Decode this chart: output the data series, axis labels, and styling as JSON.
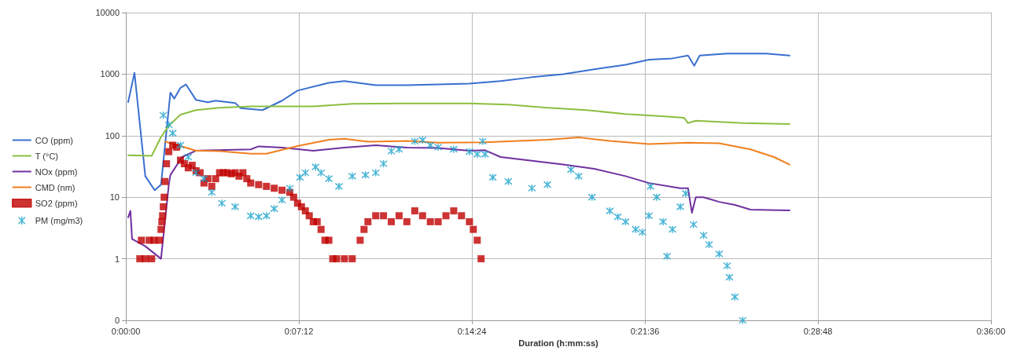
{
  "chart_data": {
    "type": "line",
    "xlabel": "Duration (h:mm:ss)",
    "xlim": [
      0,
      0.6
    ],
    "xticks": [
      {
        "value": 0,
        "label": "0:00:00"
      },
      {
        "value": 0.12,
        "label": "0:07:12"
      },
      {
        "value": 0.24,
        "label": "0:14:24"
      },
      {
        "value": 0.36,
        "label": "0:21:36"
      },
      {
        "value": 0.48,
        "label": "0:28:48"
      },
      {
        "value": 0.6,
        "label": "0:36:00"
      }
    ],
    "ylim": [
      0.1,
      10000
    ],
    "yticks": [
      {
        "value": 0.1,
        "label": "0"
      },
      1,
      10,
      100,
      1000,
      10000
    ],
    "log": "y",
    "grid": true,
    "legend": "left",
    "line_style": "solid",
    "series": [
      {
        "name": "CO (ppm)",
        "marker": "none",
        "color": "#3a6fcf",
        "x": [
          0.0016,
          0.006,
          0.0135,
          0.02,
          0.0244,
          0.0309,
          0.0336,
          0.0379,
          0.0417,
          0.0487,
          0.0569,
          0.0623,
          0.0758,
          0.0796,
          0.0948,
          0.1083,
          0.1191,
          0.1408,
          0.1516,
          0.1733,
          0.1949,
          0.2166,
          0.2383,
          0.2599,
          0.2816,
          0.3032,
          0.3249,
          0.3466,
          0.3628,
          0.3791,
          0.3899,
          0.3942,
          0.398,
          0.417,
          0.444,
          0.4603
        ],
        "values": [
          350,
          1050,
          22,
          13,
          16,
          500,
          400,
          600,
          680,
          380,
          350,
          370,
          340,
          280,
          260,
          370,
          540,
          720,
          770,
          660,
          660,
          680,
          700,
          770,
          890,
          1000,
          1200,
          1420,
          1720,
          1800,
          2000,
          1370,
          2000,
          2150,
          2150,
          2000
        ]
      },
      {
        "name": "T (°C)",
        "marker": "none",
        "color": "#8cbf3f",
        "x": [
          0.0016,
          0.0179,
          0.0244,
          0.0298,
          0.0379,
          0.0487,
          0.065,
          0.0866,
          0.13,
          0.157,
          0.2112,
          0.2383,
          0.2653,
          0.2924,
          0.3195,
          0.3466,
          0.3737,
          0.3872,
          0.3899,
          0.3953,
          0.4278,
          0.4603
        ],
        "values": [
          48,
          47,
          95,
          145,
          220,
          260,
          285,
          300,
          300,
          330,
          335,
          335,
          320,
          285,
          260,
          225,
          205,
          195,
          160,
          175,
          160,
          155
        ]
      },
      {
        "name": "NOx (ppm)",
        "marker": "none",
        "color": "#7030a0",
        "x": [
          0.0016,
          0.0032,
          0.0043,
          0.0135,
          0.0244,
          0.0298,
          0.0309,
          0.039,
          0.0487,
          0.0866,
          0.0921,
          0.1083,
          0.13,
          0.1516,
          0.1733,
          0.1949,
          0.2166,
          0.2383,
          0.2491,
          0.2599,
          0.2816,
          0.3032,
          0.3249,
          0.3466,
          0.3628,
          0.3845,
          0.3899,
          0.3926,
          0.3953,
          0.4007,
          0.4115,
          0.4224,
          0.4332,
          0.4603
        ],
        "values": [
          4.7,
          6,
          2.1,
          1.6,
          1,
          16,
          23,
          45,
          57,
          60,
          67,
          64,
          57,
          64,
          70,
          64,
          63,
          57,
          58,
          45,
          39,
          34,
          29,
          22,
          17,
          14,
          14,
          5.6,
          10,
          10,
          8.4,
          7.5,
          6.3,
          6.1
        ]
      },
      {
        "name": "CMD (nm)",
        "marker": "none",
        "color": "#f07f1e",
        "x": [
          0.0271,
          0.0379,
          0.0487,
          0.065,
          0.0866,
          0.0975,
          0.1191,
          0.1408,
          0.1516,
          0.1679,
          0.1949,
          0.2166,
          0.2491,
          0.2924,
          0.3141,
          0.3357,
          0.3628,
          0.3899,
          0.4115,
          0.4332,
          0.4495,
          0.4603
        ],
        "values": [
          80,
          68,
          57,
          56,
          51,
          51,
          68,
          86,
          89,
          80,
          82,
          77,
          78,
          86,
          94,
          82,
          73,
          77,
          75,
          60,
          45,
          34
        ]
      },
      {
        "name": "SO2 (ppm)",
        "type": "scatter",
        "marker": "square",
        "color": "#c00000",
        "x": [
          0.0097,
          0.0135,
          0.0179,
          0.0108,
          0.0162,
          0.0195,
          0.0233,
          0.0244,
          0.025,
          0.0255,
          0.026,
          0.0266,
          0.0271,
          0.0282,
          0.0298,
          0.0325,
          0.0352,
          0.0379,
          0.0406,
          0.0433,
          0.046,
          0.0487,
          0.0515,
          0.0542,
          0.0569,
          0.0596,
          0.0623,
          0.065,
          0.0677,
          0.0704,
          0.0731,
          0.0758,
          0.0785,
          0.0812,
          0.0839,
          0.0866,
          0.0921,
          0.0975,
          0.1029,
          0.1083,
          0.1137,
          0.1164,
          0.1191,
          0.1218,
          0.1245,
          0.1272,
          0.13,
          0.1327,
          0.1354,
          0.1381,
          0.1408,
          0.1435,
          0.1462,
          0.1516,
          0.157,
          0.1625,
          0.1652,
          0.1679,
          0.1733,
          0.1787,
          0.1841,
          0.1895,
          0.1949,
          0.2004,
          0.2058,
          0.2112,
          0.2166,
          0.222,
          0.2274,
          0.2328,
          0.2383,
          0.241,
          0.2437,
          0.2464
        ],
        "values": [
          1,
          1,
          1,
          2,
          2,
          2,
          2,
          3,
          4,
          5,
          7,
          10,
          18,
          35,
          55,
          70,
          65,
          40,
          35,
          30,
          33,
          27,
          25,
          17,
          20,
          15,
          20,
          25,
          25,
          25,
          24,
          25,
          22,
          25,
          20,
          17,
          16,
          15,
          14,
          13,
          12,
          10,
          8,
          7,
          6,
          5,
          4,
          4,
          3,
          2,
          2,
          1,
          1,
          1,
          1,
          2,
          3,
          4,
          5,
          5,
          4,
          5,
          4,
          6,
          5,
          4,
          4,
          5,
          6,
          5,
          4,
          3,
          2,
          1
        ]
      },
      {
        "name": "PM (mg/m3)",
        "type": "scatter",
        "marker": "cross",
        "color": "#1aa3cc",
        "x": [
          0.026,
          0.0298,
          0.0325,
          0.0379,
          0.0433,
          0.0487,
          0.0542,
          0.0596,
          0.0666,
          0.0758,
          0.0866,
          0.0921,
          0.0975,
          0.1029,
          0.1083,
          0.1137,
          0.1208,
          0.1245,
          0.1316,
          0.1354,
          0.1408,
          0.1478,
          0.157,
          0.1662,
          0.1733,
          0.1787,
          0.1841,
          0.1895,
          0.2004,
          0.2058,
          0.2112,
          0.2166,
          0.2274,
          0.2383,
          0.2437,
          0.2475,
          0.2491,
          0.2545,
          0.2653,
          0.2816,
          0.2924,
          0.3087,
          0.3141,
          0.3233,
          0.3357,
          0.3412,
          0.3466,
          0.3536,
          0.3582,
          0.3628,
          0.3639,
          0.3682,
          0.3726,
          0.3753,
          0.3791,
          0.3845,
          0.3883,
          0.3937,
          0.4007,
          0.4045,
          0.4115,
          0.417,
          0.4186,
          0.4224,
          0.4278
        ],
        "values": [
          215,
          150,
          110,
          70,
          45,
          25,
          20,
          12,
          8,
          7,
          5,
          4.8,
          5,
          6.5,
          9,
          14,
          21,
          25,
          31,
          25,
          20,
          15,
          22,
          23,
          25,
          35,
          56,
          60,
          81,
          85,
          70,
          65,
          60,
          55,
          50,
          81,
          50,
          21,
          18,
          14,
          16,
          28,
          22,
          10,
          6,
          4.8,
          4,
          3,
          2.7,
          5,
          15,
          10,
          4,
          1.1,
          3,
          7,
          11.5,
          3.6,
          2.4,
          1.7,
          1.2,
          0.77,
          0.5,
          0.24,
          0.1
        ]
      }
    ]
  }
}
